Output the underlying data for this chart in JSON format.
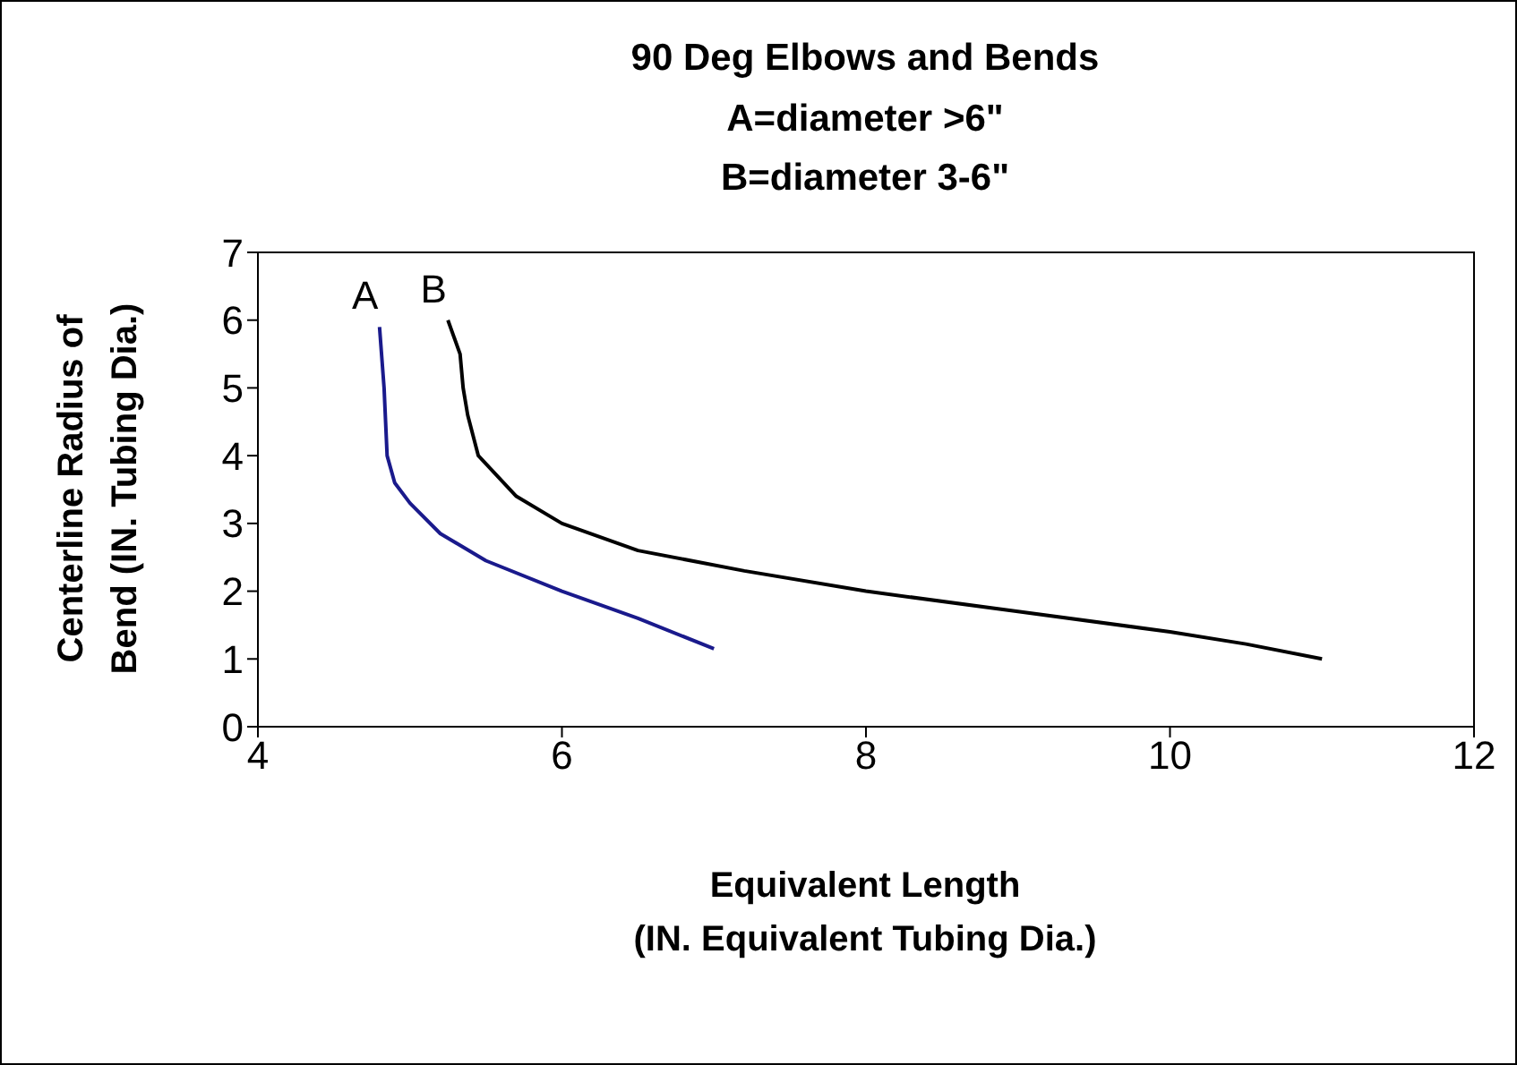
{
  "chart_data": {
    "type": "line",
    "title": "90 Deg Elbows and Bends",
    "subtitle": "A=diameter >6\"\nB=diameter 3-6\"",
    "xlabel": "Equivalent Length\n(IN. Equivalent Tubing Dia.)",
    "ylabel": "Centerline Radius of\nBend (IN. Tubing Dia.)",
    "xlim": [
      4,
      12
    ],
    "xticks": [
      4,
      6,
      8,
      10,
      12
    ],
    "ylim": [
      0,
      7
    ],
    "yticks": [
      0,
      1,
      2,
      3,
      4,
      5,
      6,
      7
    ],
    "grid": false,
    "legend": false,
    "marker": "none",
    "line_style": "solid",
    "series": [
      {
        "name": "A",
        "color": "#1a1a8c",
        "x": [
          4.8,
          4.83,
          4.85,
          4.9,
          5.0,
          5.2,
          5.5,
          6.0,
          6.5,
          7.0
        ],
        "values": [
          5.9,
          5.0,
          4.0,
          3.6,
          3.3,
          2.85,
          2.45,
          2.0,
          1.6,
          1.15
        ]
      },
      {
        "name": "B",
        "color": "#000000",
        "x": [
          5.25,
          5.33,
          5.35,
          5.38,
          5.45,
          5.7,
          6.0,
          6.5,
          7.2,
          8.0,
          9.0,
          10.0,
          10.5,
          11.0
        ],
        "values": [
          6.0,
          5.5,
          5.0,
          4.6,
          4.0,
          3.4,
          3.0,
          2.6,
          2.3,
          2.0,
          1.7,
          1.4,
          1.22,
          1.0
        ]
      }
    ]
  }
}
